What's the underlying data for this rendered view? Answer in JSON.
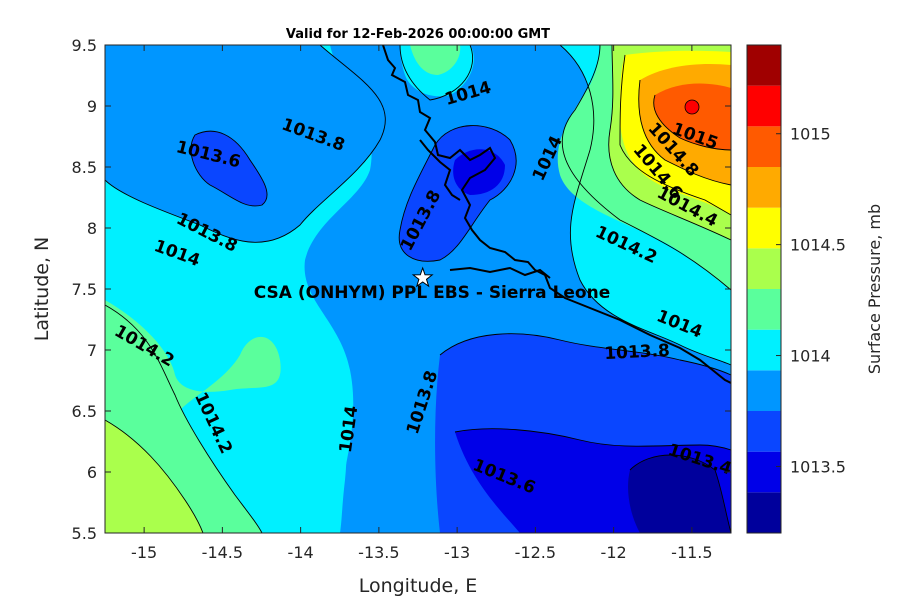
{
  "title": "Valid for 12-Feb-2026 00:00:00 GMT",
  "map": {
    "xlabel": "Longitude, E",
    "ylabel": "Latitude, N",
    "xlim": [
      -15.25,
      -11.25
    ],
    "ylim": [
      5.5,
      9.5
    ],
    "xticks": [
      "-15",
      "-14.5",
      "-14",
      "-13.5",
      "-13",
      "-12.5",
      "-12",
      "-11.5"
    ],
    "yticks": [
      "5.5",
      "6",
      "6.5",
      "7",
      "7.5",
      "8",
      "8.5",
      "9",
      "9.5"
    ],
    "site": {
      "label": "CSA (ONHYM) PPL EBS  - Sierra Leone",
      "lon": -13.22,
      "lat": 7.59,
      "marker": "star-icon"
    },
    "contour_labels": [
      {
        "text": "1014",
        "lon": -12.93,
        "lat": 9.1,
        "angle": -16
      },
      {
        "text": "1013.8",
        "lon": -13.92,
        "lat": 8.76,
        "angle": 20
      },
      {
        "text": "1013.6",
        "lon": -14.59,
        "lat": 8.6,
        "angle": 14
      },
      {
        "text": "1013.8",
        "lon": -14.6,
        "lat": 7.96,
        "angle": 27
      },
      {
        "text": "1014",
        "lon": -14.79,
        "lat": 7.79,
        "angle": 20
      },
      {
        "text": "1013.8",
        "lon": -13.23,
        "lat": 8.06,
        "angle": -62
      },
      {
        "text": "1014",
        "lon": -12.42,
        "lat": 8.57,
        "angle": -65
      },
      {
        "text": "1015",
        "lon": -11.48,
        "lat": 8.75,
        "angle": 20
      },
      {
        "text": "1014.8",
        "lon": -11.62,
        "lat": 8.64,
        "angle": 48
      },
      {
        "text": "1014.6",
        "lon": -11.72,
        "lat": 8.46,
        "angle": 50
      },
      {
        "text": "1014.4",
        "lon": -11.53,
        "lat": 8.17,
        "angle": 28
      },
      {
        "text": "1014.2",
        "lon": -11.92,
        "lat": 7.86,
        "angle": 25
      },
      {
        "text": "1014",
        "lon": -11.58,
        "lat": 7.21,
        "angle": 22
      },
      {
        "text": "1013.8",
        "lon": -11.85,
        "lat": 6.98,
        "angle": -3
      },
      {
        "text": "1014.2",
        "lon": -15.0,
        "lat": 7.03,
        "angle": 30
      },
      {
        "text": "1014.2",
        "lon": -14.56,
        "lat": 6.4,
        "angle": 65
      },
      {
        "text": "1014",
        "lon": -13.69,
        "lat": 6.35,
        "angle": -82
      },
      {
        "text": "1013.8",
        "lon": -13.22,
        "lat": 6.57,
        "angle": -72
      },
      {
        "text": "1013.6",
        "lon": -12.7,
        "lat": 5.96,
        "angle": 22
      },
      {
        "text": "1013.4",
        "lon": -11.45,
        "lat": 6.1,
        "angle": 18
      }
    ]
  },
  "colorbar": {
    "label": "Surface Pressure, mb",
    "min": 1013.2,
    "max": 1015.4,
    "colors": [
      "#00009c",
      "#0000e8",
      "#0a46ff",
      "#0096ff",
      "#00f0ff",
      "#5aff9c",
      "#aaff4c",
      "#ffff00",
      "#ffaa00",
      "#ff5a00",
      "#ff0000",
      "#a00000"
    ],
    "ticks": [
      {
        "value": 1013.5,
        "label": "1013.5"
      },
      {
        "value": 1014,
        "label": "1014"
      },
      {
        "value": 1014.5,
        "label": "1014.5"
      },
      {
        "value": 1015,
        "label": "1015"
      }
    ]
  }
}
